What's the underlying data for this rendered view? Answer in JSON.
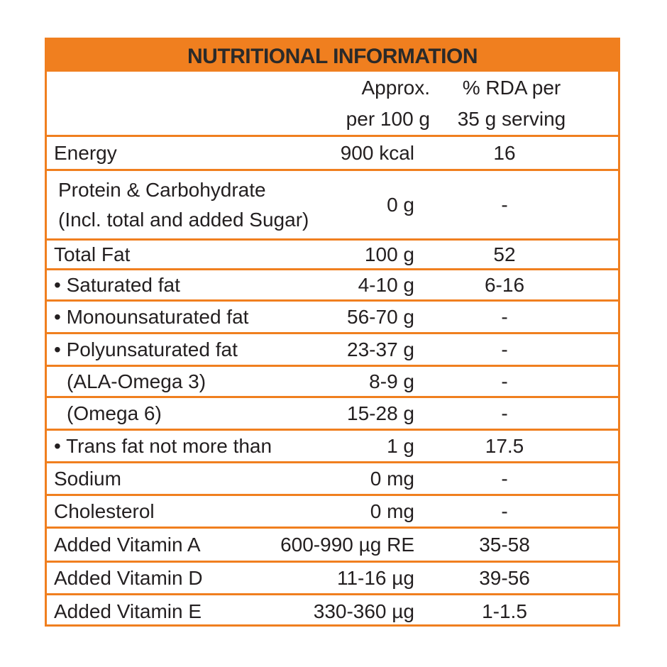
{
  "header": {
    "title": "NUTRITIONAL INFORMATION",
    "columns": [
      [
        "Approx.",
        "per 100 g"
      ],
      [
        "% RDA per",
        "35 g serving"
      ]
    ]
  },
  "table": {
    "rows": [
      {
        "label": [
          "Energy"
        ],
        "amount": "900 kcal",
        "rda": "16"
      },
      {
        "label": [
          "Protein & Carbohydrate",
          "(Incl. total and added Sugar)"
        ],
        "amount": "0 g",
        "rda": "-"
      },
      {
        "label": [
          "Total Fat"
        ],
        "amount": "100 g",
        "rda": "52"
      },
      {
        "label": [
          "• Saturated fat"
        ],
        "amount": "4-10 g",
        "rda": "6-16"
      },
      {
        "label": [
          "• Monounsaturated fat"
        ],
        "amount": "56-70 g",
        "rda": "-"
      },
      {
        "label": [
          "• Polyunsaturated fat"
        ],
        "amount": "23-37 g",
        "rda": "-"
      },
      {
        "label": [
          "(ALA-Omega 3)"
        ],
        "amount": "8-9 g",
        "rda": "-"
      },
      {
        "label": [
          "(Omega 6)"
        ],
        "amount": "15-28 g",
        "rda": "-"
      },
      {
        "label": [
          "• Trans fat not more than"
        ],
        "amount": "1 g",
        "rda": "17.5"
      },
      {
        "label": [
          "Sodium"
        ],
        "amount": "0 mg",
        "rda": "-"
      },
      {
        "label": [
          "Cholesterol"
        ],
        "amount": "0 mg",
        "rda": "-"
      },
      {
        "label": [
          "Added Vitamin A"
        ],
        "amount": "600-990 µg RE",
        "rda": "35-58"
      },
      {
        "label": [
          "Added Vitamin D"
        ],
        "amount": "11-16 µg",
        "rda": "39-56"
      },
      {
        "label": [
          "Added Vitamin E"
        ],
        "amount": "330-360 µg",
        "rda": "1-1.5"
      }
    ]
  }
}
